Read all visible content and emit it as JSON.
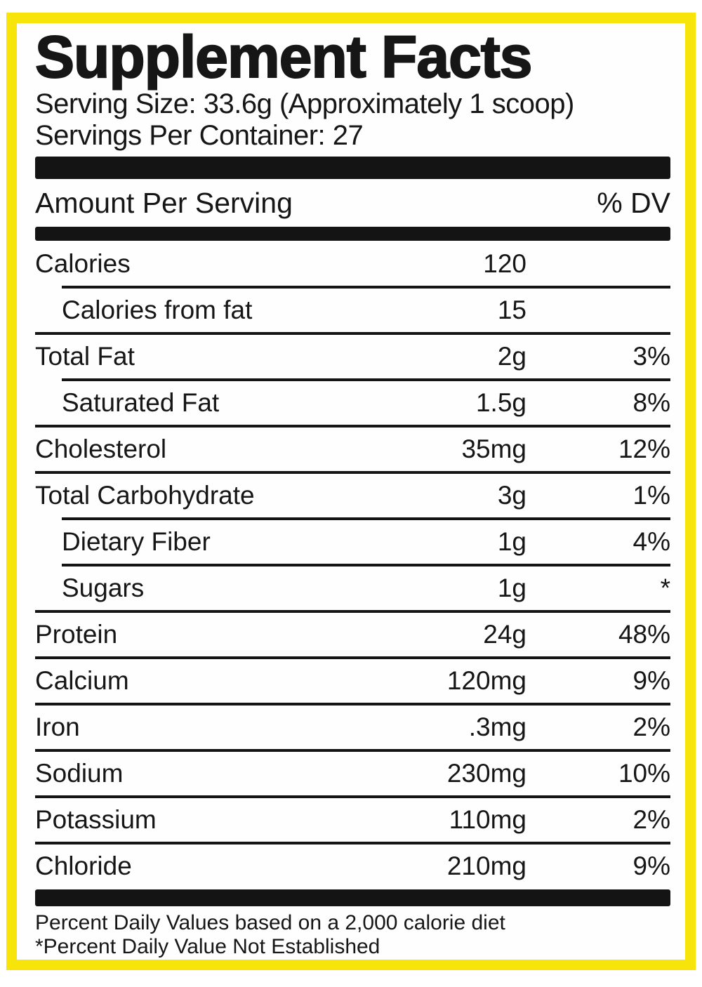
{
  "label": {
    "title": "Supplement Facts",
    "serving_size": "Serving Size: 33.6g (Approximately 1 scoop)",
    "servings_per_container": "Servings Per Container: 27",
    "column_headers": {
      "amount": "Amount Per Serving",
      "dv": "% DV"
    },
    "rows": [
      {
        "name": "Calories",
        "amount": "120",
        "dv": "",
        "indent": false
      },
      {
        "name": "Calories from fat",
        "amount": "15",
        "dv": "",
        "indent": true
      },
      {
        "name": "Total Fat",
        "amount": "2g",
        "dv": "3%",
        "indent": false
      },
      {
        "name": "Saturated Fat",
        "amount": "1.5g",
        "dv": "8%",
        "indent": true
      },
      {
        "name": "Cholesterol",
        "amount": "35mg",
        "dv": "12%",
        "indent": false
      },
      {
        "name": "Total Carbohydrate",
        "amount": "3g",
        "dv": "1%",
        "indent": false
      },
      {
        "name": "Dietary Fiber",
        "amount": "1g",
        "dv": "4%",
        "indent": true
      },
      {
        "name": "Sugars",
        "amount": "1g",
        "dv": "*",
        "indent": true
      },
      {
        "name": "Protein",
        "amount": "24g",
        "dv": "48%",
        "indent": false
      },
      {
        "name": "Calcium",
        "amount": "120mg",
        "dv": "9%",
        "indent": false
      },
      {
        "name": "Iron",
        "amount": ".3mg",
        "dv": "2%",
        "indent": false
      },
      {
        "name": "Sodium",
        "amount": "230mg",
        "dv": "10%",
        "indent": false
      },
      {
        "name": "Potassium",
        "amount": "110mg",
        "dv": "2%",
        "indent": false
      },
      {
        "name": "Chloride",
        "amount": "210mg",
        "dv": "9%",
        "indent": false
      }
    ],
    "footnotes": {
      "dv_basis": "Percent Daily Values based on a 2,000 calorie diet",
      "not_established": "*Percent Daily Value Not Established"
    },
    "colors": {
      "frame": "#f6e40b",
      "text": "#161616",
      "bar": "#141414"
    }
  }
}
